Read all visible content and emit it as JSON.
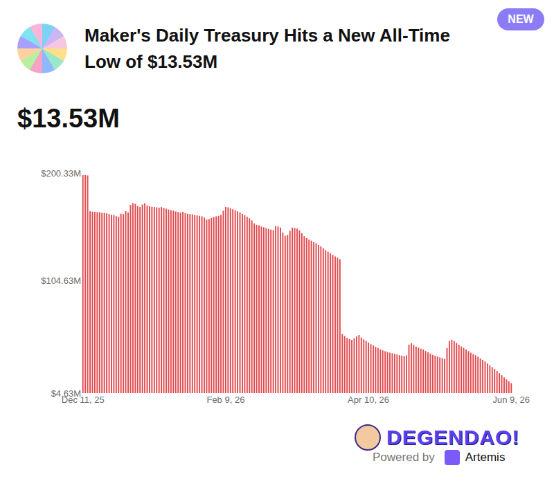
{
  "chart_data": {
    "type": "bar",
    "title": "Maker's Daily Treasury Hits a New All-Time Low of $13.53M",
    "subtitle": "$13.53M",
    "annotations": [
      "NEW",
      "DEGENDAO!",
      "Powered by",
      "Artemis"
    ],
    "x": [
      "2025-12-11",
      "2025-12-12",
      "2025-12-13",
      "2025-12-14",
      "2025-12-15",
      "2025-12-16",
      "2025-12-17",
      "2025-12-18",
      "2025-12-19",
      "2025-12-20",
      "2025-12-21",
      "2025-12-22",
      "2025-12-23",
      "2025-12-24",
      "2025-12-25",
      "2025-12-26",
      "2025-12-27",
      "2025-12-28",
      "2025-12-29",
      "2025-12-30",
      "2025-12-31",
      "2026-01-01",
      "2026-01-02",
      "2026-01-03",
      "2026-01-04",
      "2026-01-05",
      "2026-01-06",
      "2026-01-07",
      "2026-01-08",
      "2026-01-09",
      "2026-01-10",
      "2026-01-11",
      "2026-01-12",
      "2026-01-13",
      "2026-01-14",
      "2026-01-15",
      "2026-01-16",
      "2026-01-17",
      "2026-01-18",
      "2026-01-19",
      "2026-01-20",
      "2026-01-21",
      "2026-01-22",
      "2026-01-23",
      "2026-01-24",
      "2026-01-25",
      "2026-01-26",
      "2026-01-27",
      "2026-01-28",
      "2026-01-29",
      "2026-01-30",
      "2026-01-31",
      "2026-02-01",
      "2026-02-02",
      "2026-02-03",
      "2026-02-04",
      "2026-02-05",
      "2026-02-06",
      "2026-02-07",
      "2026-02-08",
      "2026-02-09",
      "2026-02-10",
      "2026-02-11",
      "2026-02-12",
      "2026-02-13",
      "2026-02-14",
      "2026-02-15",
      "2026-02-16",
      "2026-02-17",
      "2026-02-18",
      "2026-02-19",
      "2026-02-20",
      "2026-02-21",
      "2026-02-22",
      "2026-02-23",
      "2026-02-24",
      "2026-02-25",
      "2026-02-26",
      "2026-02-27",
      "2026-02-28",
      "2026-03-01",
      "2026-03-02",
      "2026-03-03",
      "2026-03-04",
      "2026-03-05",
      "2026-03-06",
      "2026-03-07",
      "2026-03-08",
      "2026-03-09",
      "2026-03-10",
      "2026-03-11",
      "2026-03-12",
      "2026-03-13",
      "2026-03-14",
      "2026-03-15",
      "2026-03-16",
      "2026-03-17",
      "2026-03-18",
      "2026-03-19",
      "2026-03-20",
      "2026-03-21",
      "2026-03-22",
      "2026-03-23",
      "2026-03-24",
      "2026-03-25",
      "2026-03-26",
      "2026-03-27",
      "2026-03-28",
      "2026-03-29",
      "2026-03-30",
      "2026-03-31",
      "2026-04-01",
      "2026-04-02",
      "2026-04-03",
      "2026-04-04",
      "2026-04-05",
      "2026-04-06",
      "2026-04-07",
      "2026-04-08",
      "2026-04-09",
      "2026-04-10",
      "2026-04-11",
      "2026-04-12",
      "2026-04-13",
      "2026-04-14",
      "2026-04-15",
      "2026-04-16",
      "2026-04-17",
      "2026-04-18",
      "2026-04-19",
      "2026-04-20",
      "2026-04-21",
      "2026-04-22",
      "2026-04-23",
      "2026-04-24",
      "2026-04-25",
      "2026-04-26",
      "2026-04-27",
      "2026-04-28",
      "2026-04-29",
      "2026-04-30",
      "2026-05-01",
      "2026-05-02",
      "2026-05-03",
      "2026-05-04",
      "2026-05-05",
      "2026-05-06",
      "2026-05-07",
      "2026-05-08",
      "2026-05-09",
      "2026-05-10",
      "2026-05-11",
      "2026-05-12",
      "2026-05-13",
      "2026-05-14",
      "2026-05-15",
      "2026-05-16",
      "2026-05-17",
      "2026-05-18",
      "2026-05-19",
      "2026-05-20",
      "2026-05-21",
      "2026-05-22",
      "2026-05-23",
      "2026-05-24",
      "2026-05-25",
      "2026-05-26",
      "2026-05-27",
      "2026-05-28",
      "2026-05-29",
      "2026-05-30",
      "2026-05-31",
      "2026-06-01",
      "2026-06-02",
      "2026-06-03",
      "2026-06-04",
      "2026-06-05",
      "2026-06-06",
      "2026-06-07",
      "2026-06-08",
      "2026-06-09"
    ],
    "values": [
      198.5,
      198.5,
      198.2,
      166.4,
      166.0,
      165.8,
      165.5,
      165.6,
      165.0,
      164.8,
      164.5,
      163.8,
      163.2,
      162.9,
      162.0,
      161.5,
      164.2,
      163.8,
      166.5,
      165.2,
      171.8,
      173.5,
      172.9,
      171.0,
      170.2,
      172.4,
      173.6,
      171.5,
      170.8,
      170.3,
      170.1,
      169.8,
      169.5,
      170.0,
      169.2,
      168.6,
      167.8,
      167.3,
      166.9,
      166.2,
      165.7,
      165.1,
      165.8,
      164.6,
      164.2,
      163.9,
      163.5,
      163.0,
      162.7,
      162.4,
      161.9,
      160.8,
      158.9,
      159.4,
      160.5,
      161.2,
      161.8,
      162.3,
      163.1,
      166.8,
      170.2,
      169.8,
      168.9,
      168.1,
      167.2,
      166.3,
      165.2,
      164.0,
      162.8,
      161.5,
      160.2,
      158.1,
      155.6,
      154.3,
      153.9,
      152.8,
      152.1,
      151.4,
      150.6,
      150.1,
      149.6,
      153.2,
      152.7,
      151.9,
      147.5,
      144.6,
      145.3,
      148.9,
      151.8,
      151.6,
      150.9,
      149.4,
      146.8,
      144.2,
      142.5,
      141.3,
      140.2,
      139.0,
      137.8,
      136.4,
      135.2,
      133.5,
      131.8,
      130.4,
      128.9,
      127.6,
      126.2,
      125.1,
      123.8,
      57.2,
      55.4,
      53.6,
      52.8,
      51.9,
      53.5,
      55.2,
      56.3,
      54.1,
      52.4,
      51.0,
      49.6,
      48.2,
      47.1,
      45.9,
      44.8,
      43.6,
      42.7,
      41.9,
      41.2,
      40.6,
      40.1,
      39.5,
      39.0,
      38.4,
      38.0,
      37.6,
      38.2,
      47.8,
      48.9,
      47.5,
      46.0,
      45.1,
      44.2,
      43.5,
      42.1,
      41.0,
      39.8,
      38.7,
      37.9,
      37.2,
      36.4,
      35.8,
      35.2,
      44.6,
      51.2,
      52.1,
      51.0,
      49.3,
      47.8,
      46.2,
      44.9,
      43.5,
      42.0,
      40.6,
      39.5,
      38.3,
      37.0,
      35.6,
      34.2,
      32.8,
      31.0,
      29.4,
      27.8,
      26.1,
      24.3,
      22.4,
      20.6,
      18.7,
      16.9,
      15.2,
      13.53
    ],
    "color": "#e2474b",
    "ylim": [
      4.63,
      200.33
    ],
    "yticks": [
      {
        "value": 4.63,
        "label": "$4.63M"
      },
      {
        "value": 104.63,
        "label": "$104.63M"
      },
      {
        "value": 200.33,
        "label": "$200.33M"
      }
    ],
    "xticks": [
      {
        "value": "2025-12-11",
        "label": "Dec 11, 25"
      },
      {
        "value": "2026-02-09",
        "label": "Feb 9, 26"
      },
      {
        "value": "2026-04-10",
        "label": "Apr 10, 26"
      },
      {
        "value": "2026-06-09",
        "label": "Jun 9, 26"
      }
    ],
    "grid": false
  }
}
